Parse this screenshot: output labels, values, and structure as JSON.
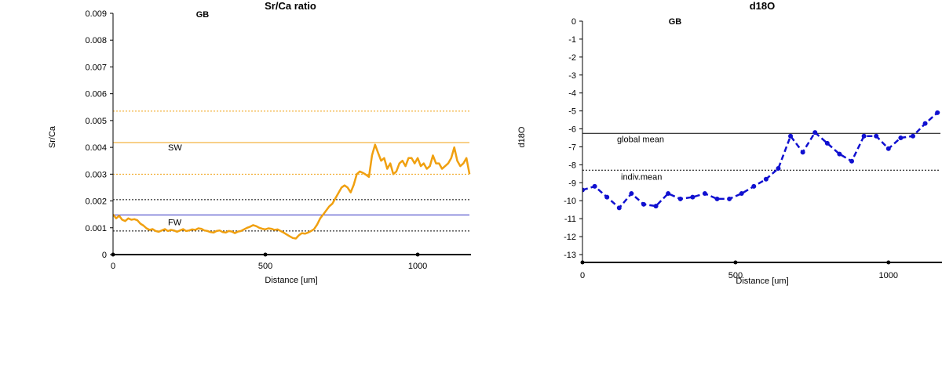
{
  "chart_data": [
    {
      "type": "line",
      "title": "Sr/Ca ratio",
      "badge": "GB",
      "xlabel": "Distance [um]",
      "ylabel": "Sr/Ca",
      "xlim": [
        0,
        1175
      ],
      "ylim": [
        0,
        0.009
      ],
      "x_ticks": [
        0,
        500,
        1000
      ],
      "x_tick_labels": [
        "0",
        "500",
        "1000"
      ],
      "y_ticks": [
        0,
        0.001,
        0.002,
        0.003,
        0.004,
        0.005,
        0.006,
        0.007,
        0.008,
        0.009
      ],
      "y_tick_labels": [
        "0",
        "0.001",
        "0.002",
        "0.003",
        "0.004",
        "0.005",
        "0.006",
        "0.007",
        "0.008",
        "0.009"
      ],
      "line_color": "#f0a010",
      "series": [
        {
          "x": [
            0,
            10,
            20,
            30,
            40,
            50,
            60,
            70,
            80,
            90,
            100,
            110,
            120,
            130,
            140,
            150,
            160,
            170,
            180,
            190,
            200,
            210,
            220,
            230,
            240,
            250,
            260,
            270,
            280,
            290,
            300,
            310,
            320,
            330,
            340,
            350,
            360,
            370,
            380,
            390,
            400,
            410,
            420,
            430,
            440,
            450,
            460,
            470,
            480,
            490,
            500,
            510,
            520,
            530,
            540,
            550,
            560,
            570,
            580,
            590,
            600,
            610,
            620,
            630,
            640,
            650,
            660,
            670,
            680,
            690,
            700,
            710,
            720,
            730,
            740,
            750,
            760,
            770,
            780,
            790,
            800,
            810,
            820,
            830,
            840,
            850,
            860,
            870,
            880,
            890,
            900,
            910,
            920,
            930,
            940,
            950,
            960,
            970,
            980,
            990,
            1000,
            1010,
            1020,
            1030,
            1040,
            1050,
            1060,
            1070,
            1080,
            1090,
            1100,
            1110,
            1120,
            1130,
            1140,
            1150,
            1160,
            1170
          ],
          "y": [
            0.0015,
            0.00135,
            0.00145,
            0.0013,
            0.00125,
            0.00135,
            0.0013,
            0.00132,
            0.00128,
            0.00115,
            0.00108,
            0.00098,
            0.00092,
            0.00095,
            0.00088,
            0.00085,
            0.0009,
            0.00095,
            0.00088,
            0.00092,
            0.0009,
            0.00085,
            0.0009,
            0.00095,
            0.00088,
            0.0009,
            0.00094,
            0.00092,
            0.00098,
            0.00096,
            0.0009,
            0.00088,
            0.00084,
            0.00082,
            0.00088,
            0.0009,
            0.00084,
            0.00082,
            0.00088,
            0.00086,
            0.0008,
            0.00086,
            0.00088,
            0.00094,
            0.001,
            0.00104,
            0.0011,
            0.00106,
            0.001,
            0.00096,
            0.00094,
            0.00098,
            0.00096,
            0.00092,
            0.00094,
            0.00088,
            0.00082,
            0.00075,
            0.00068,
            0.00062,
            0.0006,
            0.00072,
            0.0008,
            0.00078,
            0.00082,
            0.00088,
            0.00095,
            0.00112,
            0.00135,
            0.0015,
            0.00165,
            0.0018,
            0.0019,
            0.0021,
            0.0023,
            0.0025,
            0.00258,
            0.0025,
            0.00232,
            0.0026,
            0.003,
            0.0031,
            0.00305,
            0.00298,
            0.0029,
            0.0037,
            0.0041,
            0.0038,
            0.0035,
            0.0036,
            0.0032,
            0.0034,
            0.003,
            0.0031,
            0.0034,
            0.0035,
            0.0033,
            0.0036,
            0.0036,
            0.0034,
            0.0036,
            0.0033,
            0.0034,
            0.0032,
            0.0033,
            0.0037,
            0.0034,
            0.0034,
            0.0032,
            0.0033,
            0.0034,
            0.0036,
            0.004,
            0.0035,
            0.0033,
            0.0034,
            0.0036,
            0.003
          ]
        }
      ],
      "reference_lines": [
        {
          "y": 0.00535,
          "color": "#f0a010",
          "style": "dotted",
          "label": ""
        },
        {
          "y": 0.00418,
          "color": "#f0a010",
          "style": "solid",
          "label": "SW"
        },
        {
          "y": 0.003,
          "color": "#f0a010",
          "style": "dotted",
          "label": ""
        },
        {
          "y": 0.00205,
          "color": "#000000",
          "style": "dotted",
          "label": ""
        },
        {
          "y": 0.00148,
          "color": "#3030c0",
          "style": "solid",
          "label": "FW"
        },
        {
          "y": 0.00088,
          "color": "#000000",
          "style": "dotted",
          "label": ""
        }
      ]
    },
    {
      "type": "line",
      "title": "d18O",
      "badge": "GB",
      "xlabel": "Distance [um]",
      "ylabel": "d18O",
      "xlim": [
        0,
        1175
      ],
      "ylim": [
        -13,
        0
      ],
      "x_ticks": [
        0,
        500,
        1000
      ],
      "x_tick_labels": [
        "0",
        "500",
        "1000"
      ],
      "y_ticks": [
        0,
        -1,
        -2,
        -3,
        -4,
        -5,
        -6,
        -7,
        -8,
        -9,
        -10,
        -11,
        -12,
        -13
      ],
      "y_tick_labels": [
        "0",
        "-1",
        "-2",
        "-3",
        "-4",
        "-5",
        "-6",
        "-7",
        "-8",
        "-9",
        "-10",
        "-11",
        "-12",
        "-13"
      ],
      "line_color": "#1010d0",
      "series": [
        {
          "x": [
            0,
            40,
            80,
            120,
            160,
            200,
            240,
            280,
            320,
            360,
            400,
            440,
            480,
            520,
            560,
            600,
            640,
            680,
            720,
            760,
            800,
            840,
            880,
            920,
            960,
            1000,
            1040,
            1080,
            1120,
            1160,
            1200
          ],
          "y": [
            -9.4,
            -9.2,
            -9.8,
            -10.4,
            -9.6,
            -10.2,
            -10.3,
            -9.6,
            -9.9,
            -9.8,
            -9.6,
            -9.9,
            -9.9,
            -9.6,
            -9.2,
            -8.8,
            -8.2,
            -6.4,
            -7.3,
            -6.2,
            -6.8,
            -7.4,
            -7.8,
            -6.4,
            -6.4,
            -7.1,
            -6.5,
            -6.4,
            -5.7,
            -5.1,
            -4.8
          ]
        }
      ],
      "reference_lines": [
        {
          "y": -6.25,
          "color": "#000000",
          "style": "solid",
          "label": "global mean"
        },
        {
          "y": -8.3,
          "color": "#000000",
          "style": "dotted",
          "label": "indiv.mean"
        }
      ]
    }
  ]
}
